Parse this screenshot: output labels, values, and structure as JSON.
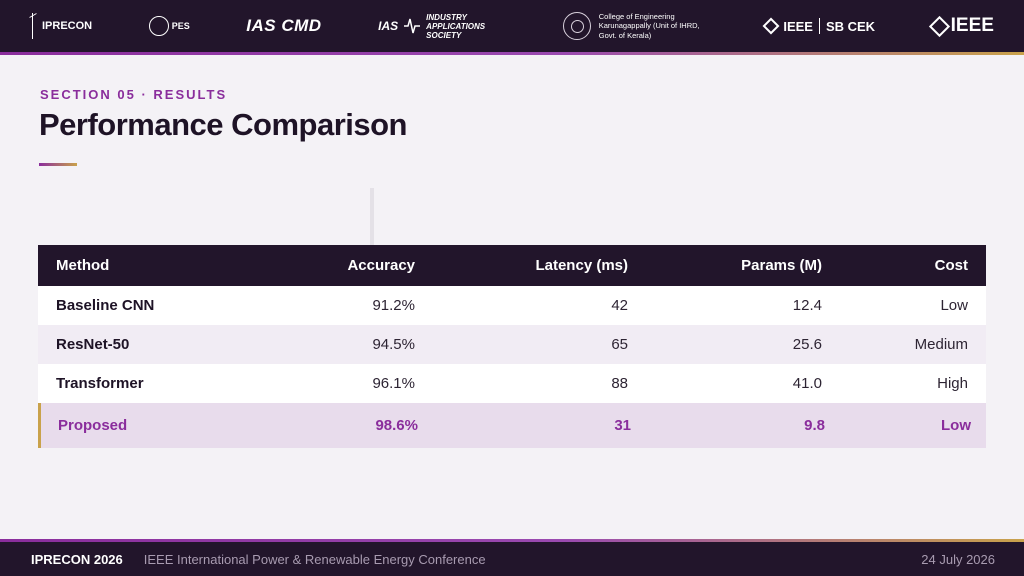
{
  "header": {
    "logos": [
      {
        "name": "iprecon-logo",
        "text": "IPRECON"
      },
      {
        "name": "pes-logo",
        "text": "PES"
      },
      {
        "name": "ias-cmd-logo",
        "text": "IAS CMD"
      },
      {
        "name": "ias-logo",
        "mark": "IAS",
        "text": "INDUSTRY APPLICATIONS SOCIETY"
      },
      {
        "name": "cek-logo",
        "text": "College of Engineering Karunagappally (Unit of IHRD, Govt. of Kerala)"
      },
      {
        "name": "ieee-sb-logo",
        "text": "IEEE",
        "sb": "SB CEK"
      },
      {
        "name": "ieee-logo",
        "text": "IEEE"
      }
    ]
  },
  "heading": {
    "eyebrow": "SECTION 05 · RESULTS",
    "title": "Performance Comparison"
  },
  "table": {
    "columns": [
      "Method",
      "Accuracy",
      "Latency (ms)",
      "Params (M)",
      "Cost"
    ],
    "rows": [
      {
        "method": "Baseline CNN",
        "accuracy": "91.2%",
        "latency": "42",
        "params": "12.4",
        "cost": "Low"
      },
      {
        "method": "ResNet-50",
        "accuracy": "94.5%",
        "latency": "65",
        "params": "25.6",
        "cost": "Medium"
      },
      {
        "method": "Transformer",
        "accuracy": "96.1%",
        "latency": "88",
        "params": "41.0",
        "cost": "High"
      },
      {
        "method": "Proposed",
        "accuracy": "98.6%",
        "latency": "31",
        "params": "9.8",
        "cost": "Low",
        "highlight": true
      }
    ]
  },
  "footer": {
    "conference": "IPRECON 2026",
    "full_name": "IEEE International Power & Renewable Energy Conference",
    "date": "24 July 2026"
  },
  "colors": {
    "dark": "#22152b",
    "accent_purple": "#8a2d9c",
    "accent_gold": "#c9a24b",
    "background": "#f4f2f6"
  }
}
